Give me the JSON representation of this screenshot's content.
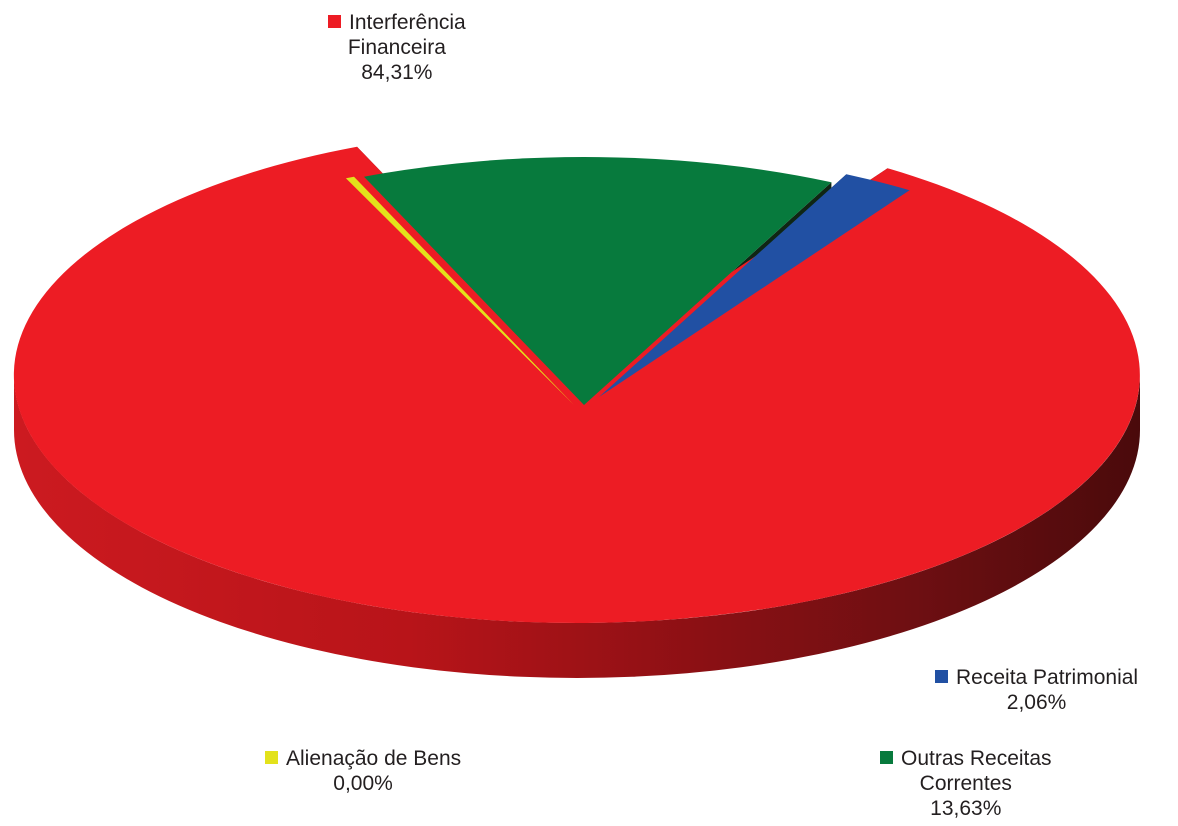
{
  "chart_data": {
    "type": "pie",
    "title": "",
    "slices": [
      {
        "label_lines": [
          "Interferência",
          "Financeira"
        ],
        "value_label": "84,31%",
        "value": 84.31,
        "color": "#ed1c24",
        "side_color": "#b5141b",
        "dark_color": "#4f0c0c"
      },
      {
        "label_lines": [
          "Receita Patrimonial"
        ],
        "value_label": "2,06%",
        "value": 2.06,
        "color": "#2150a3",
        "side_color": "#0b1557",
        "dark_color": "#061036"
      },
      {
        "label_lines": [
          "Outras Receitas",
          "Correntes"
        ],
        "value_label": "13,63%",
        "value": 13.63,
        "color": "#077a3d",
        "side_color": "#1f5a2c",
        "dark_color": "#0f2614"
      },
      {
        "label_lines": [
          "Alienação de Bens"
        ],
        "value_label": "0,00%",
        "value": 0.0,
        "color": "#e3e21b",
        "side_color": "#b3b52a",
        "dark_color": "#9a9c22"
      }
    ],
    "legend_placement": "labels-around-slices",
    "style": "3d-exploded-pie"
  }
}
